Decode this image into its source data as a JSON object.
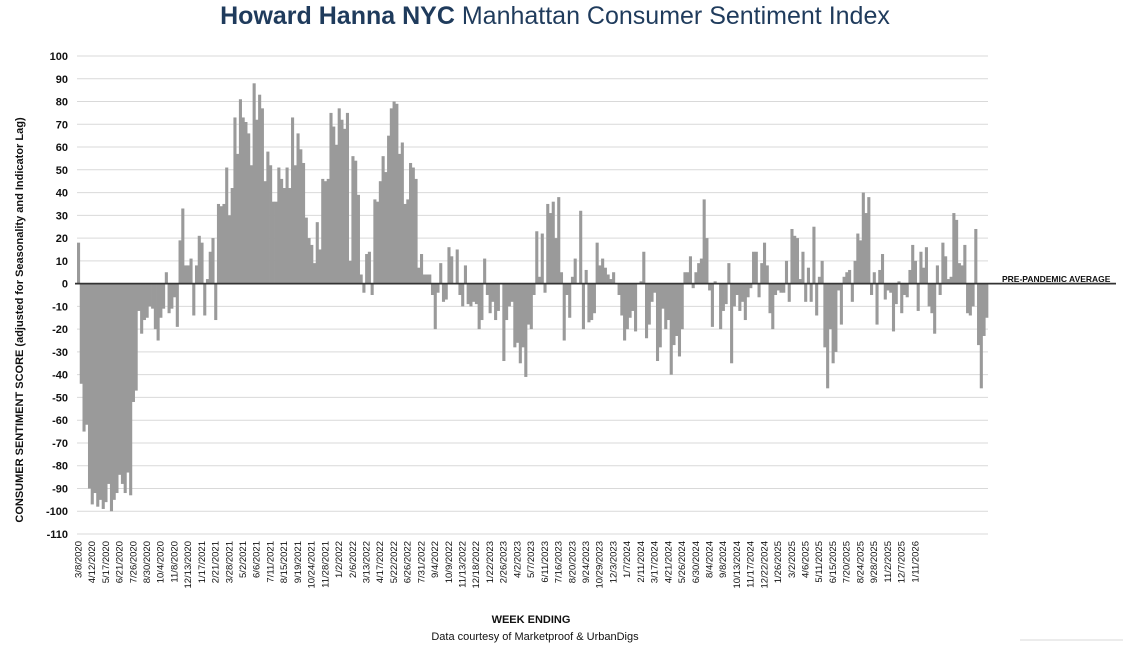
{
  "title_brand": "Howard Hanna NYC",
  "title_rest": "Manhattan Consumer Sentiment Index",
  "credit": "Data courtesy of Marketproof & UrbanDigs",
  "colors": {
    "bars": "#9a9a9a",
    "grid": "#d9d9d9",
    "baseline": "#333333",
    "title": "#1f3b5c"
  },
  "chart_data": {
    "type": "bar",
    "xlabel": "WEEK ENDING",
    "ylabel": "CONSUMER SENTIMENT SCORE (adjusted for Seasonality and Indicator Lag)",
    "ylim": [
      -110,
      100
    ],
    "yticks": [
      100,
      90,
      80,
      70,
      60,
      50,
      40,
      30,
      20,
      10,
      0,
      -10,
      -20,
      -30,
      -40,
      -50,
      -60,
      -70,
      -80,
      -90,
      -100,
      -110
    ],
    "grid": true,
    "reference_line": {
      "value": 0,
      "label": "PRE-PANDEMIC AVERAGE"
    },
    "x_tick_labels": [
      "3/8/2020",
      "4/12/2020",
      "5/17/2020",
      "6/21/2020",
      "7/26/2020",
      "8/30/2020",
      "10/4/2020",
      "11/8/2020",
      "12/13/2020",
      "1/17/2021",
      "2/21/2021",
      "3/28/2021",
      "5/2/2021",
      "6/6/2021",
      "7/11/2021",
      "8/15/2021",
      "9/19/2021",
      "10/24/2021",
      "11/28/2021",
      "1/2/2022",
      "2/6/2022",
      "3/13/2022",
      "4/17/2022",
      "5/22/2022",
      "6/26/2022",
      "7/31/2022",
      "9/4/2022",
      "10/9/2022",
      "11/13/2022",
      "12/18/2022",
      "1/22/2023",
      "2/26/2023",
      "4/2/2023",
      "5/7/2023",
      "6/11/2023",
      "7/16/2023",
      "8/20/2023",
      "9/24/2023",
      "10/29/2023",
      "12/3/2023",
      "1/7/2024",
      "2/11/2024",
      "3/17/2024",
      "4/21/2024",
      "5/26/2024",
      "6/30/2024",
      "8/4/2024",
      "9/8/2024",
      "10/13/2024",
      "11/17/2024",
      "12/22/2024",
      "1/26/2025",
      "3/2/2025",
      "4/6/2025",
      "5/11/2025",
      "6/15/2025",
      "7/20/2025",
      "8/24/2025",
      "9/28/2025",
      "11/2/2025",
      "12/7/2025",
      "1/11/2026"
    ],
    "values": [
      18,
      -44,
      -65,
      -62,
      -90,
      -97,
      -92,
      -98,
      -95,
      -99,
      -96,
      -88,
      -100,
      -95,
      -92,
      -84,
      -88,
      -92,
      -83,
      -93,
      -52,
      -47,
      -12,
      -22,
      -16,
      -15,
      -10,
      -11,
      -20,
      -25,
      -15,
      -11,
      5,
      -13,
      -11,
      -6,
      -19,
      19,
      33,
      8,
      8,
      11,
      -14,
      8,
      21,
      18,
      -14,
      2,
      14,
      20,
      -16,
      35,
      34,
      35,
      51,
      30,
      42,
      73,
      57,
      81,
      73,
      71,
      66,
      52,
      88,
      72,
      83,
      77,
      45,
      58,
      52,
      36,
      36,
      51,
      46,
      42,
      51,
      42,
      73,
      52,
      66,
      59,
      53,
      29,
      20,
      17,
      9,
      27,
      15,
      46,
      45,
      46,
      75,
      69,
      61,
      77,
      72,
      68,
      75,
      10,
      56,
      54,
      39,
      4,
      -4,
      13,
      14,
      -5,
      37,
      36,
      45,
      56,
      49,
      65,
      77,
      80,
      79,
      57,
      62,
      35,
      37,
      53,
      51,
      46,
      7,
      13,
      4,
      4,
      4,
      -5,
      -20,
      -4,
      9,
      -8,
      -7,
      16,
      12,
      0,
      15,
      -5,
      -10,
      8,
      -9,
      -10,
      -8,
      -9,
      -20,
      -16,
      11,
      -5,
      -13,
      -8,
      -16,
      -12,
      0,
      -34,
      -16,
      -10,
      -8,
      -28,
      -26,
      -35,
      -28,
      -41,
      -18,
      -20,
      -5,
      23,
      3,
      22,
      -4,
      35,
      31,
      36,
      20,
      38,
      5,
      -25,
      -5,
      -15,
      3,
      11,
      0,
      32,
      -20,
      6,
      -17,
      -16,
      -13,
      18,
      8,
      11,
      7,
      4,
      2,
      5,
      0,
      -5,
      -14,
      -25,
      -20,
      -15,
      -12,
      -21,
      0,
      1,
      14,
      -24,
      -18,
      -8,
      -4,
      -34,
      -28,
      -11,
      -20,
      -16,
      -40,
      -27,
      -23,
      -32,
      -20,
      5,
      5,
      12,
      -2,
      5,
      9,
      11,
      37,
      20,
      -3,
      -19,
      1,
      0,
      -20,
      -12,
      -9,
      9,
      -35,
      -10,
      -5,
      -12,
      -8,
      -16,
      -6,
      -2,
      14,
      14,
      -6,
      9,
      18,
      8,
      -13,
      -20,
      -5,
      -3,
      -4,
      -4,
      10,
      -8,
      24,
      21,
      20,
      2,
      14,
      -8,
      7,
      -8,
      25,
      -14,
      3,
      10,
      -28,
      -46,
      -20,
      -35,
      -30,
      -3,
      -18,
      3,
      5,
      6,
      -8,
      10,
      22,
      19,
      40,
      31,
      38,
      -5,
      5,
      -18,
      6,
      13,
      -7,
      -3,
      -4,
      -21,
      -9,
      1,
      -13,
      -5,
      -6,
      6,
      17,
      10,
      -12,
      14,
      7,
      16,
      -10,
      -13,
      -22,
      8,
      -5,
      18,
      12,
      2,
      3,
      31,
      28,
      9,
      8,
      17,
      -13,
      -14,
      -10,
      24,
      -27,
      -46,
      -23,
      -15
    ]
  }
}
